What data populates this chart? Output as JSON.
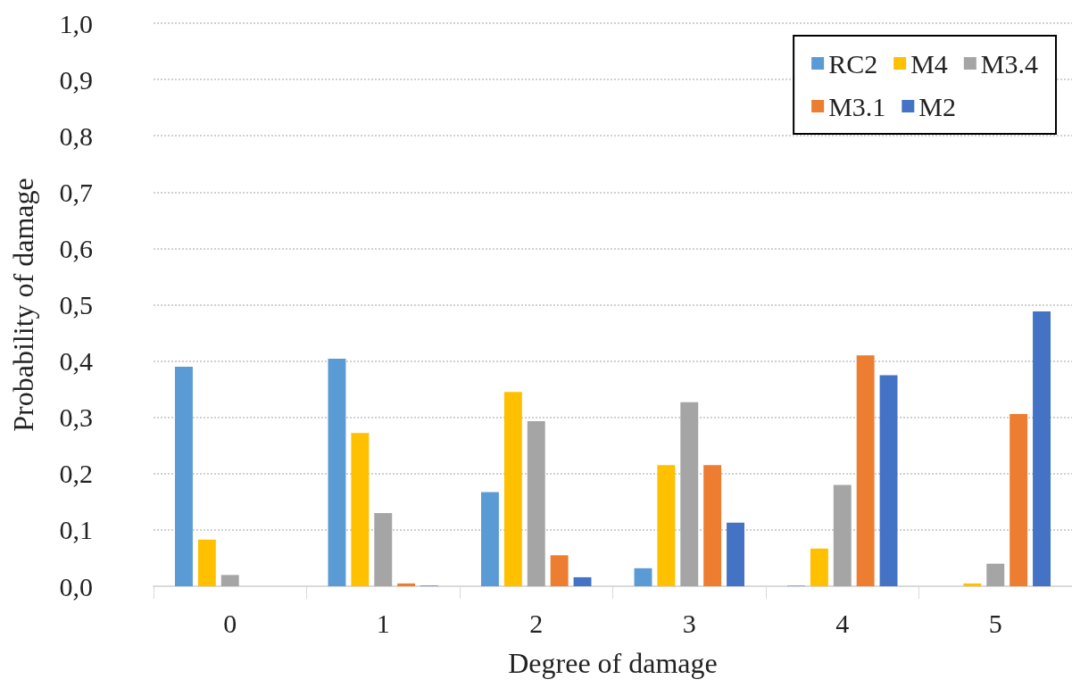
{
  "chart_data": {
    "type": "bar",
    "xlabel": "Degree of damage",
    "ylabel": "Probability of damage",
    "categories": [
      "0",
      "1",
      "2",
      "3",
      "4",
      "5"
    ],
    "series": [
      {
        "name": "RC2",
        "color": "#5b9bd5",
        "values": [
          0.39,
          0.404,
          0.167,
          0.032,
          0.001,
          0
        ]
      },
      {
        "name": "M4",
        "color": "#ffc000",
        "values": [
          0.083,
          0.272,
          0.345,
          0.215,
          0.067,
          0.005
        ]
      },
      {
        "name": "M3.4",
        "color": "#a5a5a5",
        "values": [
          0.02,
          0.13,
          0.293,
          0.327,
          0.18,
          0.04
        ]
      },
      {
        "name": "M3.1",
        "color": "#ed7d31",
        "values": [
          0,
          0.005,
          0.055,
          0.215,
          0.41,
          0.306
        ]
      },
      {
        "name": "M2",
        "color": "#4472c4",
        "values": [
          0,
          0.001,
          0.016,
          0.113,
          0.375,
          0.488
        ]
      }
    ],
    "ylim": [
      0,
      1
    ],
    "yticks": [
      {
        "value": 0,
        "label": "0,0"
      },
      {
        "value": 0.1,
        "label": "0,1"
      },
      {
        "value": 0.2,
        "label": "0,2"
      },
      {
        "value": 0.3,
        "label": "0,3"
      },
      {
        "value": 0.4,
        "label": "0,4"
      },
      {
        "value": 0.5,
        "label": "0,5"
      },
      {
        "value": 0.6,
        "label": "0,6"
      },
      {
        "value": 0.7,
        "label": "0,7"
      },
      {
        "value": 0.8,
        "label": "0,8"
      },
      {
        "value": 0.9,
        "label": "0,9"
      },
      {
        "value": 1,
        "label": "1,0"
      }
    ],
    "grid": "y",
    "legend": "top right"
  }
}
